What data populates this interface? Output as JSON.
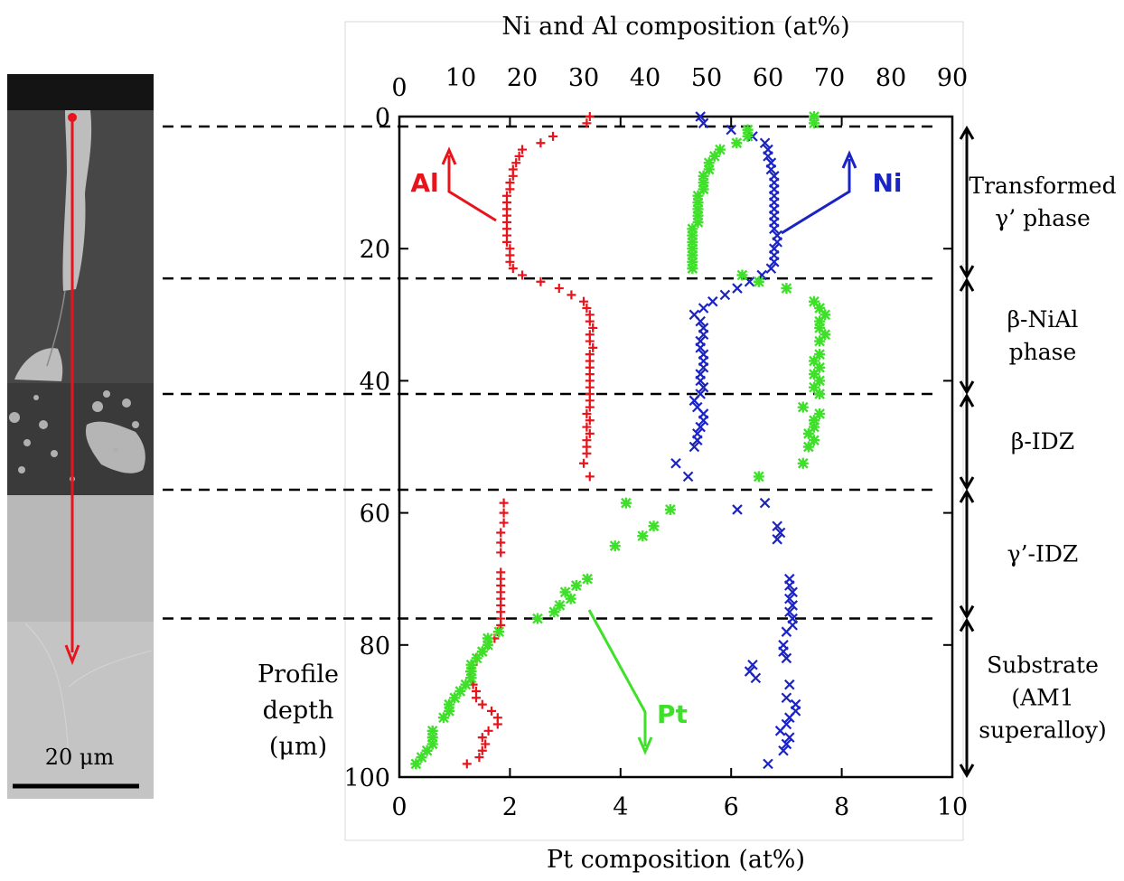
{
  "chart_data": {
    "type": "scatter",
    "orientation": "depth-profile",
    "y_axis": {
      "label_lines": [
        "Profile",
        "depth",
        "(μm)"
      ],
      "range": [
        0,
        100
      ],
      "ticks": [
        "0",
        "20",
        "40",
        "60",
        "80",
        "100"
      ],
      "inverted": true
    },
    "x_axis_bottom": {
      "label": "Pt composition (at%)",
      "range": [
        0,
        10
      ],
      "ticks": [
        "0",
        "2",
        "4",
        "6",
        "8",
        "10"
      ]
    },
    "x_axis_top": {
      "label": "Ni and Al composition (at%)",
      "range": [
        0,
        90
      ],
      "ticks": [
        "0",
        "10",
        "20",
        "30",
        "40",
        "50",
        "60",
        "70",
        "80",
        "90"
      ]
    },
    "grid": false,
    "series": [
      {
        "name": "Al",
        "axis": "top",
        "color": "#e8141b",
        "marker": "plus",
        "points": [
          [
            31,
            0
          ],
          [
            30.5,
            1
          ],
          [
            25,
            3
          ],
          [
            23,
            4
          ],
          [
            20,
            5
          ],
          [
            19.5,
            6
          ],
          [
            19,
            7
          ],
          [
            18.5,
            8
          ],
          [
            18.5,
            9
          ],
          [
            18,
            10
          ],
          [
            18,
            11
          ],
          [
            17.5,
            12
          ],
          [
            17.5,
            13
          ],
          [
            17.5,
            14
          ],
          [
            17.5,
            15
          ],
          [
            17.5,
            16
          ],
          [
            17.5,
            17
          ],
          [
            17.5,
            18
          ],
          [
            17.5,
            19
          ],
          [
            18,
            20
          ],
          [
            18,
            21
          ],
          [
            18,
            22
          ],
          [
            18.5,
            23
          ],
          [
            20,
            24
          ],
          [
            23,
            25
          ],
          [
            26,
            26
          ],
          [
            28,
            27
          ],
          [
            30,
            28
          ],
          [
            30.5,
            29
          ],
          [
            31,
            30
          ],
          [
            31,
            31
          ],
          [
            31.5,
            32
          ],
          [
            31,
            33
          ],
          [
            31,
            34
          ],
          [
            31.5,
            35
          ],
          [
            31,
            36
          ],
          [
            31,
            37
          ],
          [
            31,
            38
          ],
          [
            31,
            39
          ],
          [
            31,
            40
          ],
          [
            31,
            41
          ],
          [
            31,
            42
          ],
          [
            31,
            43
          ],
          [
            31,
            44
          ],
          [
            30.5,
            45
          ],
          [
            31,
            46
          ],
          [
            30.5,
            47
          ],
          [
            31,
            48
          ],
          [
            30.5,
            49
          ],
          [
            30.5,
            50
          ],
          [
            30.5,
            51
          ],
          [
            30,
            52.5
          ],
          [
            31,
            54.5
          ],
          [
            17,
            58.5
          ],
          [
            17,
            60
          ],
          [
            17,
            61.5
          ],
          [
            16.5,
            63
          ],
          [
            16.5,
            64.5
          ],
          [
            16.5,
            66
          ],
          [
            16.5,
            69
          ],
          [
            16.5,
            70
          ],
          [
            16.5,
            71
          ],
          [
            16.5,
            72
          ],
          [
            16.5,
            73
          ],
          [
            16.5,
            74
          ],
          [
            16.5,
            75
          ],
          [
            16.5,
            76
          ],
          [
            16.5,
            77
          ],
          [
            16,
            78
          ],
          [
            15.5,
            79
          ],
          [
            14.5,
            80
          ],
          [
            13.5,
            81
          ],
          [
            12.5,
            82
          ],
          [
            12,
            83
          ],
          [
            11.5,
            84
          ],
          [
            11.5,
            85
          ],
          [
            12,
            86
          ],
          [
            12.5,
            87
          ],
          [
            12.5,
            88
          ],
          [
            13.5,
            89
          ],
          [
            15,
            90
          ],
          [
            16,
            91
          ],
          [
            16,
            92
          ],
          [
            14.5,
            93
          ],
          [
            13.5,
            94
          ],
          [
            14,
            95
          ],
          [
            13.5,
            96
          ],
          [
            13,
            97
          ],
          [
            11,
            98
          ]
        ]
      },
      {
        "name": "Ni",
        "axis": "top",
        "color": "#1a23c4",
        "marker": "x",
        "points": [
          [
            49,
            0
          ],
          [
            49.5,
            1
          ],
          [
            54,
            2
          ],
          [
            57.5,
            3
          ],
          [
            59.5,
            4
          ],
          [
            60,
            5
          ],
          [
            60,
            6
          ],
          [
            60.5,
            7
          ],
          [
            60.5,
            8
          ],
          [
            61,
            9
          ],
          [
            61,
            10
          ],
          [
            61,
            11
          ],
          [
            61,
            12
          ],
          [
            61,
            13
          ],
          [
            61,
            14
          ],
          [
            61,
            15
          ],
          [
            61,
            16
          ],
          [
            61,
            17
          ],
          [
            61.5,
            18
          ],
          [
            61.5,
            19
          ],
          [
            61,
            20
          ],
          [
            61,
            21
          ],
          [
            61,
            22
          ],
          [
            60.5,
            23
          ],
          [
            59,
            24
          ],
          [
            57,
            25
          ],
          [
            55,
            26
          ],
          [
            53,
            27
          ],
          [
            51,
            28
          ],
          [
            49.5,
            29
          ],
          [
            48,
            30
          ],
          [
            49,
            31
          ],
          [
            49.5,
            32
          ],
          [
            49.5,
            33
          ],
          [
            49,
            34
          ],
          [
            49,
            35
          ],
          [
            49.5,
            36
          ],
          [
            49.5,
            37
          ],
          [
            49.5,
            38
          ],
          [
            49,
            39
          ],
          [
            49,
            40
          ],
          [
            49.5,
            41
          ],
          [
            49,
            42
          ],
          [
            48,
            43
          ],
          [
            48.5,
            44
          ],
          [
            49.5,
            45
          ],
          [
            49.5,
            46
          ],
          [
            49,
            47
          ],
          [
            48.5,
            48
          ],
          [
            48.5,
            49
          ],
          [
            48,
            50
          ],
          [
            45,
            52.5
          ],
          [
            47,
            54.5
          ],
          [
            59.5,
            58.5
          ],
          [
            55,
            59.5
          ],
          [
            61.5,
            62
          ],
          [
            62,
            63
          ],
          [
            61.5,
            64
          ],
          [
            63.5,
            70
          ],
          [
            63.5,
            71
          ],
          [
            64,
            72
          ],
          [
            63.5,
            73
          ],
          [
            64,
            74
          ],
          [
            63.5,
            75
          ],
          [
            64,
            76
          ],
          [
            64,
            77
          ],
          [
            63,
            78
          ],
          [
            62.5,
            80
          ],
          [
            62.5,
            81
          ],
          [
            63,
            82
          ],
          [
            57.5,
            83
          ],
          [
            57,
            84
          ],
          [
            58,
            85
          ],
          [
            63.5,
            86
          ],
          [
            63,
            88
          ],
          [
            64.5,
            89
          ],
          [
            64.5,
            90
          ],
          [
            63.5,
            91
          ],
          [
            63,
            92
          ],
          [
            62,
            93
          ],
          [
            63.5,
            94
          ],
          [
            63,
            95
          ],
          [
            62.5,
            96
          ],
          [
            60,
            98
          ]
        ]
      },
      {
        "name": "Pt",
        "axis": "bottom",
        "color": "#3fe02a",
        "marker": "star",
        "points": [
          [
            7.5,
            0
          ],
          [
            7.5,
            1
          ],
          [
            6.3,
            2
          ],
          [
            6.3,
            3
          ],
          [
            6.1,
            4
          ],
          [
            5.8,
            5
          ],
          [
            5.7,
            6
          ],
          [
            5.6,
            7
          ],
          [
            5.6,
            8
          ],
          [
            5.5,
            9
          ],
          [
            5.5,
            10
          ],
          [
            5.5,
            11
          ],
          [
            5.4,
            12
          ],
          [
            5.4,
            13
          ],
          [
            5.4,
            14
          ],
          [
            5.4,
            15
          ],
          [
            5.4,
            16
          ],
          [
            5.3,
            17
          ],
          [
            5.3,
            18
          ],
          [
            5.3,
            19
          ],
          [
            5.3,
            20
          ],
          [
            5.3,
            21
          ],
          [
            5.3,
            22
          ],
          [
            5.3,
            23
          ],
          [
            6.2,
            24
          ],
          [
            6.5,
            25
          ],
          [
            7.0,
            26
          ],
          [
            7.5,
            28
          ],
          [
            7.6,
            29
          ],
          [
            7.7,
            30
          ],
          [
            7.6,
            31
          ],
          [
            7.6,
            32
          ],
          [
            7.7,
            33
          ],
          [
            7.6,
            34
          ],
          [
            7.6,
            36
          ],
          [
            7.5,
            37
          ],
          [
            7.6,
            38
          ],
          [
            7.5,
            39
          ],
          [
            7.6,
            40
          ],
          [
            7.5,
            41
          ],
          [
            7.6,
            42
          ],
          [
            7.3,
            44
          ],
          [
            7.6,
            45
          ],
          [
            7.5,
            46
          ],
          [
            7.5,
            47
          ],
          [
            7.4,
            48
          ],
          [
            7.5,
            49
          ],
          [
            7.4,
            50
          ],
          [
            7.3,
            52.5
          ],
          [
            6.5,
            54.5
          ],
          [
            4.1,
            58.5
          ],
          [
            4.9,
            59.5
          ],
          [
            4.6,
            62
          ],
          [
            4.4,
            63.5
          ],
          [
            3.9,
            65
          ],
          [
            3.4,
            70
          ],
          [
            3.2,
            71
          ],
          [
            3.0,
            72
          ],
          [
            3.1,
            73
          ],
          [
            2.9,
            74
          ],
          [
            2.8,
            75
          ],
          [
            2.5,
            76
          ],
          [
            1.8,
            78
          ],
          [
            1.6,
            79
          ],
          [
            1.6,
            80
          ],
          [
            1.5,
            81
          ],
          [
            1.4,
            82
          ],
          [
            1.3,
            83
          ],
          [
            1.3,
            84
          ],
          [
            1.3,
            85
          ],
          [
            1.2,
            86
          ],
          [
            1.1,
            87
          ],
          [
            1.0,
            88
          ],
          [
            0.9,
            89
          ],
          [
            0.9,
            90
          ],
          [
            0.8,
            91
          ],
          [
            0.6,
            93
          ],
          [
            0.6,
            94
          ],
          [
            0.6,
            95
          ],
          [
            0.5,
            96
          ],
          [
            0.4,
            97
          ],
          [
            0.3,
            98
          ]
        ]
      }
    ],
    "series_labels": [
      "Al",
      "Ni",
      "Pt"
    ],
    "interfaces_depth": [
      1.5,
      24.5,
      42,
      56.5,
      76
    ],
    "zones": [
      {
        "lines": [
          "Transformed",
          "γ’ phase"
        ],
        "from": 1.5,
        "to": 24.5
      },
      {
        "lines": [
          "β-NiAl",
          "phase"
        ],
        "from": 24.5,
        "to": 42
      },
      {
        "lines": [
          "β-IDZ"
        ],
        "from": 42,
        "to": 56.5
      },
      {
        "lines": [
          "γ’-IDZ"
        ],
        "from": 56.5,
        "to": 76
      },
      {
        "lines": [
          "Substrate",
          "(AM1",
          "superalloy)"
        ],
        "from": 76,
        "to": 100
      }
    ],
    "colors": {
      "al": "#e8141b",
      "ni": "#1a23c4",
      "pt": "#3fe02a",
      "dashed": "#000000"
    }
  },
  "micrograph": {
    "scale_bar_label": "20 μm",
    "profile_arrow_color": "#e8141b"
  }
}
